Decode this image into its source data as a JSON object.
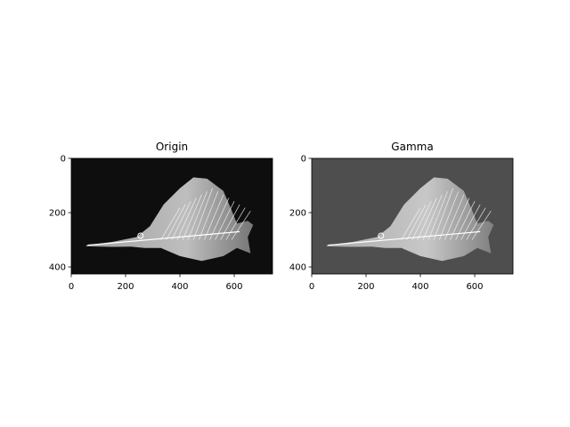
{
  "chart_data": [
    {
      "type": "image",
      "title": "Origin",
      "color": "#0e0e0e",
      "xlim": [
        0,
        741
      ],
      "ylim": [
        426,
        0
      ],
      "xticks": [
        0,
        200,
        400,
        600
      ],
      "yticks": [
        0,
        200,
        400
      ]
    },
    {
      "type": "image",
      "title": "Gamma",
      "color": "#4e4e4e",
      "xlim": [
        0,
        741
      ],
      "ylim": [
        426,
        0
      ],
      "xticks": [
        0,
        200,
        400,
        600
      ],
      "yticks": [
        0,
        200,
        400
      ]
    }
  ]
}
